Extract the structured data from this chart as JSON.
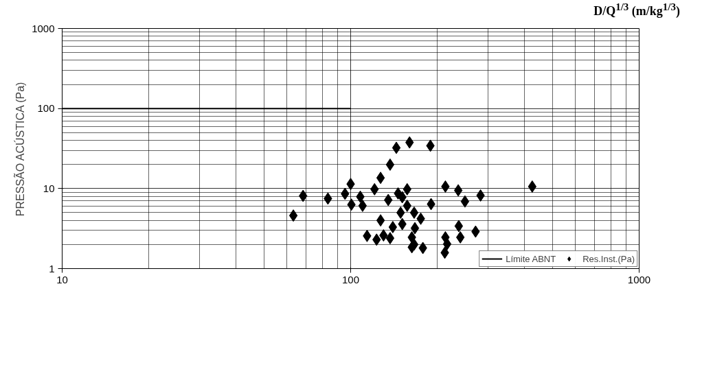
{
  "chart_data": {
    "type": "scatter",
    "xlabel": "D/Q$^{1/3}$ (m/kg$^{1/3}$)",
    "ylabel": "PRESSÃO ACÚSTICA (Pa)",
    "log": "xy",
    "grid": true,
    "legend": "bottom right",
    "xlim": [
      10,
      1000
    ],
    "ylim": [
      1,
      1000
    ],
    "xticks": [
      10,
      100,
      1000
    ],
    "yticks": [
      1,
      10,
      100,
      1000
    ],
    "series": [
      {
        "name": "Límite ABNT",
        "type": "line",
        "color": "#000000",
        "marker": "none",
        "x": [
          10,
          100
        ],
        "values": [
          100,
          100
        ]
      },
      {
        "name": "Res.Inst.(Pa)",
        "color": "#000000",
        "marker": "diamond",
        "x": [
          63.3,
          68.4,
          83.4,
          100,
          95.6,
          100.6,
          108,
          110,
          114,
          121,
          127,
          137,
          144,
          160,
          189,
          135,
          127,
          123,
          130,
          137,
          146,
          151,
          157,
          157,
          149,
          166,
          175,
          140,
          151,
          167,
          163,
          166,
          163,
          178,
          213,
          236,
          249,
          282,
          190,
          237,
          240,
          271,
          213,
          216,
          212,
          426
        ],
        "values": [
          4.6,
          8.1,
          7.5,
          11.4,
          8.6,
          6.3,
          7.9,
          6.1,
          2.56,
          9.8,
          13.6,
          19.9,
          32.3,
          37.7,
          34.3,
          7.2,
          4.0,
          2.3,
          2.6,
          2.4,
          8.7,
          7.8,
          9.8,
          6.1,
          5.0,
          5.0,
          4.2,
          3.3,
          3.6,
          3.2,
          2.46,
          2.0,
          1.85,
          1.81,
          10.6,
          9.5,
          6.9,
          8.2,
          6.4,
          3.4,
          2.46,
          2.9,
          2.46,
          2.03,
          1.58,
          10.6
        ]
      }
    ]
  }
}
